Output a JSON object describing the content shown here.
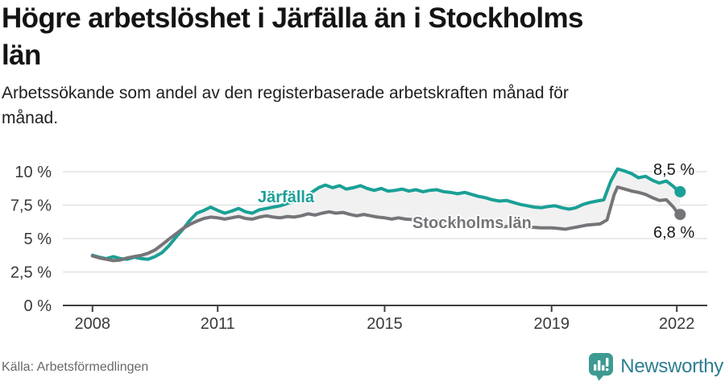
{
  "header": {
    "title_lines": [
      "Högre arbetslöshet i Järfälla än i Stockholms",
      "län"
    ],
    "subtitle_lines": [
      "Arbetssökande som andel av den registerbaserade arbetskraften månad för",
      "månad."
    ]
  },
  "footer": {
    "source": "Källa: Arbetsförmedlingen",
    "brand": {
      "name": "Newsworthy",
      "icon": "chart-speech-bubble-icon",
      "icon_color": "#3d9a92",
      "text_color": "#2e7e93"
    }
  },
  "chart_data": {
    "type": "line",
    "title": "Högre arbetslöshet i Järfälla än i Stockholms län",
    "subtitle": "Arbetssökande som andel av den registerbaserade arbetskraften månad för månad.",
    "unit": "%",
    "grid": true,
    "legend_position": "inline-labels",
    "xlim": [
      2007.29,
      2022.73
    ],
    "ylim": [
      0,
      10
    ],
    "band_fill": "#f1f1f1",
    "axis_color": "#3f3f3f",
    "grid_color": "#e3e3e3",
    "tick_label_color": "#3a3a3a",
    "x_ticks": [
      {
        "value": 2008,
        "label": "2008"
      },
      {
        "value": 2011,
        "label": "2011"
      },
      {
        "value": 2015,
        "label": "2015"
      },
      {
        "value": 2019,
        "label": "2019"
      },
      {
        "value": 2022,
        "label": "2022"
      }
    ],
    "y_ticks": [
      {
        "value": 0,
        "label": "0 %"
      },
      {
        "value": 2.5,
        "label": "2,5 %"
      },
      {
        "value": 5,
        "label": "5 %"
      },
      {
        "value": 7.5,
        "label": "7,5 %"
      },
      {
        "value": 10,
        "label": "10 %"
      }
    ],
    "series": [
      {
        "name": "Järfälla",
        "color": "#1aa096",
        "end_label": "8,5 %",
        "end_value": 8.5,
        "points": [
          [
            2008.0,
            3.75
          ],
          [
            2008.17,
            3.6
          ],
          [
            2008.33,
            3.5
          ],
          [
            2008.5,
            3.65
          ],
          [
            2008.67,
            3.5
          ],
          [
            2008.83,
            3.45
          ],
          [
            2009.0,
            3.6
          ],
          [
            2009.17,
            3.5
          ],
          [
            2009.33,
            3.45
          ],
          [
            2009.5,
            3.65
          ],
          [
            2009.67,
            3.95
          ],
          [
            2009.83,
            4.45
          ],
          [
            2010.0,
            5.1
          ],
          [
            2010.17,
            5.7
          ],
          [
            2010.33,
            6.35
          ],
          [
            2010.5,
            6.9
          ],
          [
            2010.67,
            7.1
          ],
          [
            2010.83,
            7.35
          ],
          [
            2011.0,
            7.1
          ],
          [
            2011.17,
            6.9
          ],
          [
            2011.33,
            7.05
          ],
          [
            2011.5,
            7.25
          ],
          [
            2011.67,
            7.0
          ],
          [
            2011.83,
            6.9
          ],
          [
            2012.0,
            7.15
          ],
          [
            2012.25,
            7.3
          ],
          [
            2012.5,
            7.45
          ],
          [
            2012.75,
            7.7
          ],
          [
            2013.0,
            8.0
          ],
          [
            2013.25,
            8.45
          ],
          [
            2013.42,
            8.8
          ],
          [
            2013.58,
            9.0
          ],
          [
            2013.75,
            8.8
          ],
          [
            2013.92,
            8.95
          ],
          [
            2014.08,
            8.7
          ],
          [
            2014.25,
            8.8
          ],
          [
            2014.42,
            8.95
          ],
          [
            2014.58,
            8.75
          ],
          [
            2014.75,
            8.6
          ],
          [
            2014.92,
            8.75
          ],
          [
            2015.08,
            8.55
          ],
          [
            2015.25,
            8.6
          ],
          [
            2015.42,
            8.7
          ],
          [
            2015.58,
            8.55
          ],
          [
            2015.75,
            8.65
          ],
          [
            2015.92,
            8.5
          ],
          [
            2016.08,
            8.6
          ],
          [
            2016.25,
            8.65
          ],
          [
            2016.42,
            8.5
          ],
          [
            2016.58,
            8.45
          ],
          [
            2016.75,
            8.35
          ],
          [
            2016.92,
            8.45
          ],
          [
            2017.08,
            8.3
          ],
          [
            2017.25,
            8.15
          ],
          [
            2017.42,
            8.05
          ],
          [
            2017.58,
            7.9
          ],
          [
            2017.75,
            7.8
          ],
          [
            2017.92,
            7.85
          ],
          [
            2018.08,
            7.7
          ],
          [
            2018.25,
            7.55
          ],
          [
            2018.42,
            7.45
          ],
          [
            2018.58,
            7.35
          ],
          [
            2018.75,
            7.3
          ],
          [
            2018.92,
            7.4
          ],
          [
            2019.08,
            7.45
          ],
          [
            2019.25,
            7.3
          ],
          [
            2019.42,
            7.2
          ],
          [
            2019.58,
            7.3
          ],
          [
            2019.75,
            7.55
          ],
          [
            2019.92,
            7.7
          ],
          [
            2020.08,
            7.8
          ],
          [
            2020.25,
            7.9
          ],
          [
            2020.42,
            9.3
          ],
          [
            2020.58,
            10.2
          ],
          [
            2020.75,
            10.05
          ],
          [
            2020.92,
            9.85
          ],
          [
            2021.08,
            9.55
          ],
          [
            2021.25,
            9.65
          ],
          [
            2021.42,
            9.35
          ],
          [
            2021.58,
            9.15
          ],
          [
            2021.75,
            9.3
          ],
          [
            2021.92,
            8.9
          ],
          [
            2022.0,
            8.65
          ],
          [
            2022.08,
            8.5
          ]
        ]
      },
      {
        "name": "Stockholms län",
        "color": "#757579",
        "end_label": "6,8 %",
        "end_value": 6.8,
        "points": [
          [
            2008.0,
            3.7
          ],
          [
            2008.17,
            3.55
          ],
          [
            2008.33,
            3.45
          ],
          [
            2008.5,
            3.35
          ],
          [
            2008.67,
            3.4
          ],
          [
            2008.83,
            3.55
          ],
          [
            2009.0,
            3.65
          ],
          [
            2009.17,
            3.75
          ],
          [
            2009.33,
            3.9
          ],
          [
            2009.5,
            4.15
          ],
          [
            2009.67,
            4.55
          ],
          [
            2009.83,
            4.95
          ],
          [
            2010.0,
            5.35
          ],
          [
            2010.17,
            5.75
          ],
          [
            2010.33,
            6.05
          ],
          [
            2010.5,
            6.3
          ],
          [
            2010.67,
            6.5
          ],
          [
            2010.83,
            6.6
          ],
          [
            2011.0,
            6.55
          ],
          [
            2011.17,
            6.45
          ],
          [
            2011.33,
            6.55
          ],
          [
            2011.5,
            6.65
          ],
          [
            2011.67,
            6.5
          ],
          [
            2011.83,
            6.45
          ],
          [
            2012.0,
            6.6
          ],
          [
            2012.17,
            6.7
          ],
          [
            2012.33,
            6.6
          ],
          [
            2012.5,
            6.55
          ],
          [
            2012.67,
            6.65
          ],
          [
            2012.83,
            6.6
          ],
          [
            2013.0,
            6.7
          ],
          [
            2013.17,
            6.85
          ],
          [
            2013.33,
            6.75
          ],
          [
            2013.5,
            6.9
          ],
          [
            2013.67,
            7.0
          ],
          [
            2013.83,
            6.9
          ],
          [
            2014.0,
            6.95
          ],
          [
            2014.17,
            6.8
          ],
          [
            2014.33,
            6.7
          ],
          [
            2014.5,
            6.8
          ],
          [
            2014.67,
            6.7
          ],
          [
            2014.83,
            6.6
          ],
          [
            2015.0,
            6.55
          ],
          [
            2015.17,
            6.45
          ],
          [
            2015.33,
            6.55
          ],
          [
            2015.5,
            6.45
          ],
          [
            2015.75,
            6.4
          ],
          [
            2016.0,
            6.35
          ],
          [
            2016.25,
            6.3
          ],
          [
            2016.5,
            6.25
          ],
          [
            2016.75,
            6.2
          ],
          [
            2017.0,
            6.1
          ],
          [
            2017.25,
            6.0
          ],
          [
            2017.5,
            5.95
          ],
          [
            2017.75,
            5.9
          ],
          [
            2018.0,
            5.9
          ],
          [
            2018.25,
            5.85
          ],
          [
            2018.5,
            5.85
          ],
          [
            2018.75,
            5.8
          ],
          [
            2019.0,
            5.8
          ],
          [
            2019.17,
            5.75
          ],
          [
            2019.33,
            5.7
          ],
          [
            2019.5,
            5.8
          ],
          [
            2019.67,
            5.9
          ],
          [
            2019.83,
            6.0
          ],
          [
            2020.0,
            6.05
          ],
          [
            2020.17,
            6.1
          ],
          [
            2020.33,
            6.4
          ],
          [
            2020.5,
            8.3
          ],
          [
            2020.58,
            8.85
          ],
          [
            2020.75,
            8.7
          ],
          [
            2020.92,
            8.55
          ],
          [
            2021.08,
            8.45
          ],
          [
            2021.25,
            8.3
          ],
          [
            2021.42,
            8.05
          ],
          [
            2021.58,
            7.85
          ],
          [
            2021.75,
            7.9
          ],
          [
            2021.92,
            7.35
          ],
          [
            2022.0,
            7.0
          ],
          [
            2022.08,
            6.8
          ]
        ]
      }
    ]
  }
}
